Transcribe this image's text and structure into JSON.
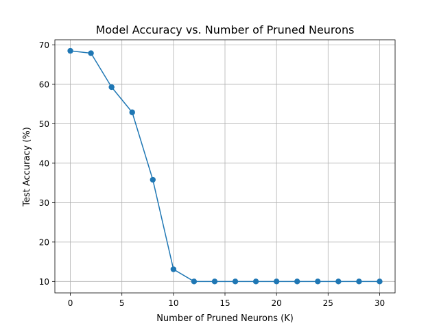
{
  "chart_data": {
    "type": "line",
    "title": "Model Accuracy vs. Number of Pruned Neurons",
    "xlabel": "Number of Pruned Neurons (K)",
    "ylabel": "Test Accuracy (%)",
    "xlim": [
      -1.5,
      31.5
    ],
    "ylim": [
      7.1,
      71.3
    ],
    "xticks": [
      0,
      5,
      10,
      15,
      20,
      25,
      30
    ],
    "yticks": [
      10,
      20,
      30,
      40,
      50,
      60,
      70
    ],
    "grid": true,
    "legend": "none",
    "series": [
      {
        "color": "#1f77b4",
        "marker": "circle",
        "x": [
          0,
          2,
          4,
          6,
          8,
          10,
          12,
          14,
          16,
          18,
          20,
          22,
          24,
          26,
          28,
          30
        ],
        "y": [
          68.5,
          67.9,
          59.3,
          52.9,
          35.8,
          13.1,
          10.0,
          10.0,
          10.0,
          10.0,
          10.0,
          10.0,
          10.0,
          10.0,
          10.0,
          10.0
        ]
      }
    ]
  }
}
